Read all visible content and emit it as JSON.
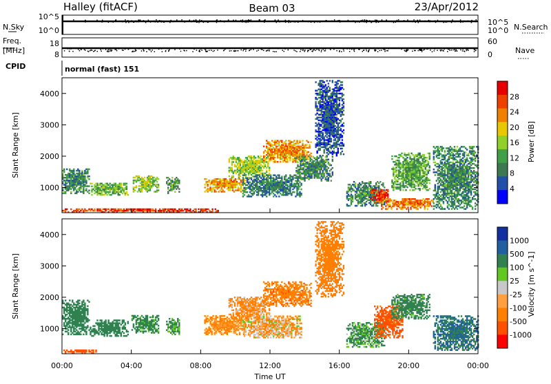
{
  "header": {
    "station": "Halley (fitACF)",
    "beam": "Beam 03",
    "date": "23/Apr/2012"
  },
  "panels": {
    "nsky": {
      "label": "N.Sky",
      "tick_top": "10^5",
      "tick_bottom": "10^0"
    },
    "nsearch": {
      "label": "N.Search",
      "tick_top": "10^5",
      "tick_bottom": "10^0"
    },
    "freq": {
      "label_line1": "Freq.",
      "label_line2": "[MHz]",
      "tick_top": "18",
      "tick_bottom": "8"
    },
    "nave": {
      "label": "Nave",
      "tick_top": "60",
      "tick_bottom": "0"
    },
    "cpid": {
      "label": "CPID",
      "value": "normal (fast) 151"
    }
  },
  "colors": {
    "power_scale": [
      "#0000ff",
      "#2050a8",
      "#3c7850",
      "#40a048",
      "#90d028",
      "#e8c800",
      "#f08000",
      "#f04000",
      "#e80000"
    ],
    "velocity_scale": [
      "#ff0000",
      "#ff5000",
      "#ff8000",
      "#ffa040",
      "#c8c8c8",
      "#60c820",
      "#308050",
      "#2060a0",
      "#1030a0"
    ]
  },
  "chart_data": [
    {
      "type": "heatmap",
      "name": "power",
      "ylabel": "Slant Range [km]",
      "y_ticks": [
        "1000",
        "2000",
        "3000",
        "4000"
      ],
      "ylim": [
        200,
        4500
      ],
      "xlim": [
        0,
        24
      ],
      "colorbar_label": "Power [dB]",
      "colorbar_ticks": [
        "4",
        "8",
        "12",
        "16",
        "20",
        "24",
        "28"
      ],
      "colorbar_range": [
        0,
        32
      ],
      "regions": [
        {
          "t0": 0.0,
          "t1": 1.6,
          "r0": 800,
          "r1": 1600,
          "v": 10
        },
        {
          "t0": 1.6,
          "t1": 3.8,
          "r0": 750,
          "r1": 1150,
          "v": 14
        },
        {
          "t0": 4.0,
          "t1": 5.6,
          "r0": 850,
          "r1": 1350,
          "v": 16
        },
        {
          "t0": 6.0,
          "t1": 6.8,
          "r0": 800,
          "r1": 1300,
          "v": 12
        },
        {
          "t0": 8.2,
          "t1": 10.6,
          "r0": 850,
          "r1": 1300,
          "v": 22
        },
        {
          "t0": 9.6,
          "t1": 12.0,
          "r0": 1300,
          "r1": 2000,
          "v": 16
        },
        {
          "t0": 11.6,
          "t1": 14.4,
          "r0": 1800,
          "r1": 2500,
          "v": 22
        },
        {
          "t0": 10.4,
          "t1": 13.8,
          "r0": 700,
          "r1": 1400,
          "v": 9
        },
        {
          "t0": 13.4,
          "t1": 15.6,
          "r0": 1200,
          "r1": 2000,
          "v": 10
        },
        {
          "t0": 14.6,
          "t1": 16.2,
          "r0": 2000,
          "r1": 4400,
          "v": 6
        },
        {
          "t0": 16.4,
          "t1": 18.6,
          "r0": 400,
          "r1": 1200,
          "v": 10
        },
        {
          "t0": 17.8,
          "t1": 18.8,
          "r0": 500,
          "r1": 950,
          "v": 28
        },
        {
          "t0": 18.4,
          "t1": 21.4,
          "r0": 300,
          "r1": 650,
          "v": 24
        },
        {
          "t0": 19.0,
          "t1": 21.2,
          "r0": 900,
          "r1": 2100,
          "v": 12
        },
        {
          "t0": 21.4,
          "t1": 24.0,
          "r0": 300,
          "r1": 2300,
          "v": 10
        },
        {
          "t0": 0.0,
          "t1": 9.0,
          "r0": 200,
          "r1": 330,
          "v": 28
        }
      ]
    },
    {
      "type": "heatmap",
      "name": "velocity",
      "ylabel": "Slant Range [km]",
      "y_ticks": [
        "1000",
        "2000",
        "3000",
        "4000"
      ],
      "ylim": [
        200,
        4500
      ],
      "xlim": [
        0,
        24
      ],
      "x_ticks": [
        "00:00",
        "04:00",
        "08:00",
        "12:00",
        "16:00",
        "20:00",
        "00:00"
      ],
      "xlabel": "Time UT",
      "colorbar_label": "Velocity [m s^-1]",
      "colorbar_ticks": [
        "1000",
        "500",
        "100",
        "25",
        "-25",
        "-100",
        "-500",
        "-1000"
      ],
      "regions": [
        {
          "t0": 0.0,
          "t1": 1.6,
          "r0": 800,
          "r1": 1900,
          "v": 250
        },
        {
          "t0": 1.6,
          "t1": 3.8,
          "r0": 750,
          "r1": 1250,
          "v": 300
        },
        {
          "t0": 4.0,
          "t1": 5.6,
          "r0": 850,
          "r1": 1400,
          "v": 200
        },
        {
          "t0": 6.0,
          "t1": 6.8,
          "r0": 800,
          "r1": 1300,
          "v": 150
        },
        {
          "t0": 8.2,
          "t1": 10.6,
          "r0": 800,
          "r1": 1400,
          "v": -150
        },
        {
          "t0": 9.6,
          "t1": 12.0,
          "r0": 1300,
          "r1": 2000,
          "v": -120
        },
        {
          "t0": 11.6,
          "t1": 14.4,
          "r0": 1700,
          "r1": 2500,
          "v": -400
        },
        {
          "t0": 10.4,
          "t1": 13.8,
          "r0": 700,
          "r1": 1400,
          "v": -80
        },
        {
          "t0": 14.6,
          "t1": 16.2,
          "r0": 2000,
          "r1": 4400,
          "v": -300
        },
        {
          "t0": 16.4,
          "t1": 18.6,
          "r0": 400,
          "r1": 1200,
          "v": 120
        },
        {
          "t0": 18.0,
          "t1": 19.6,
          "r0": 700,
          "r1": 1700,
          "v": -600
        },
        {
          "t0": 19.0,
          "t1": 21.2,
          "r0": 1300,
          "r1": 2100,
          "v": 200
        },
        {
          "t0": 21.4,
          "t1": 24.0,
          "r0": 300,
          "r1": 1400,
          "v": 500
        },
        {
          "t0": 0.0,
          "t1": 2.0,
          "r0": 200,
          "r1": 330,
          "v": -700
        }
      ]
    }
  ]
}
